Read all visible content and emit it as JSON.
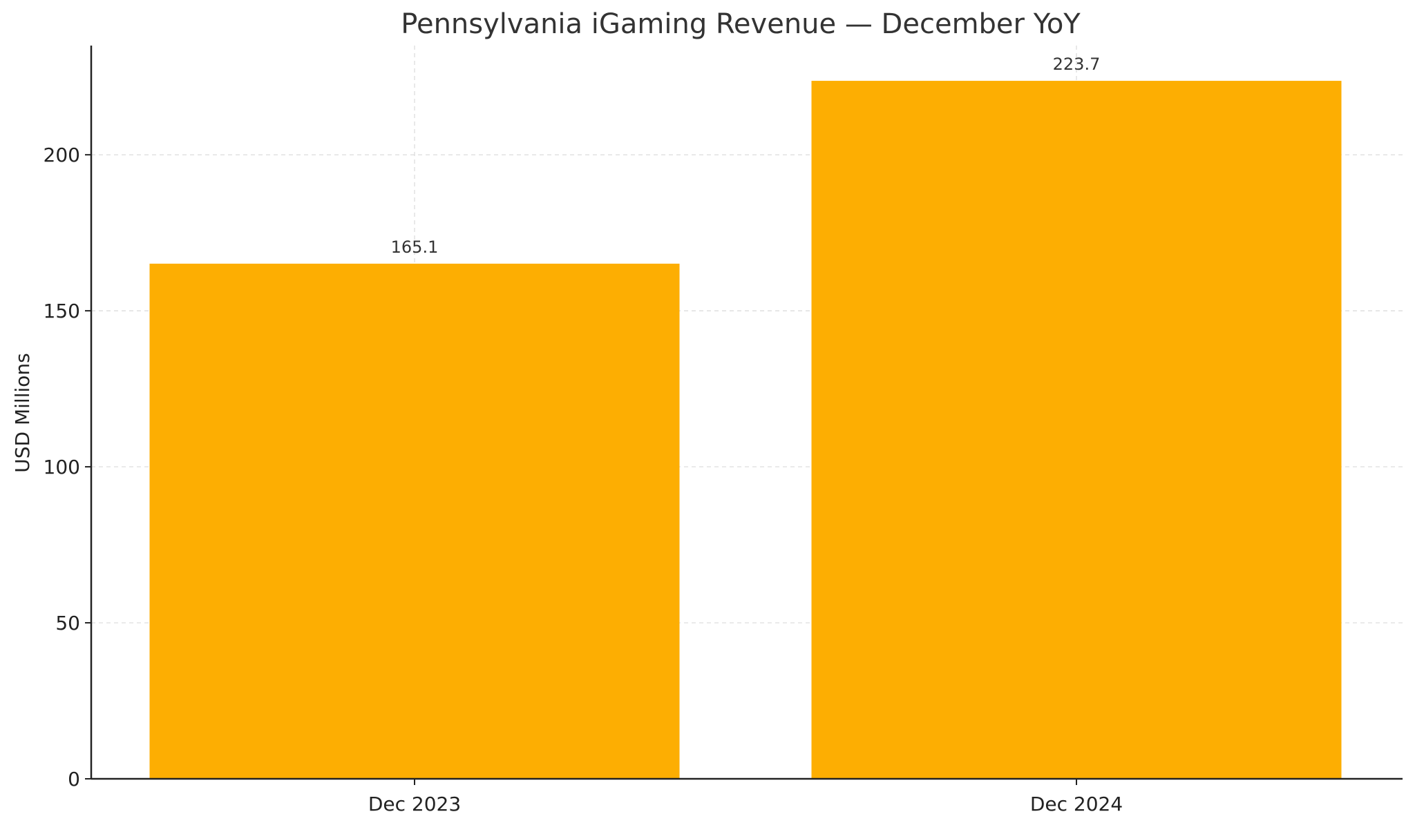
{
  "chart_data": {
    "type": "bar",
    "title": "Pennsylvania iGaming Revenue — December YoY",
    "xlabel": "",
    "ylabel": "USD Millions",
    "categories": [
      "Dec 2023",
      "Dec 2024"
    ],
    "values": [
      165.1,
      223.7
    ],
    "data_labels": [
      "165.1",
      "223.7"
    ],
    "ylim": [
      0,
      235
    ],
    "yticks": [
      0,
      50,
      100,
      150,
      200
    ],
    "grid": true,
    "colors": {
      "bar": "#FDAE02",
      "text": "#333333",
      "axis": "#222222",
      "grid": "#d9d9d9"
    }
  }
}
